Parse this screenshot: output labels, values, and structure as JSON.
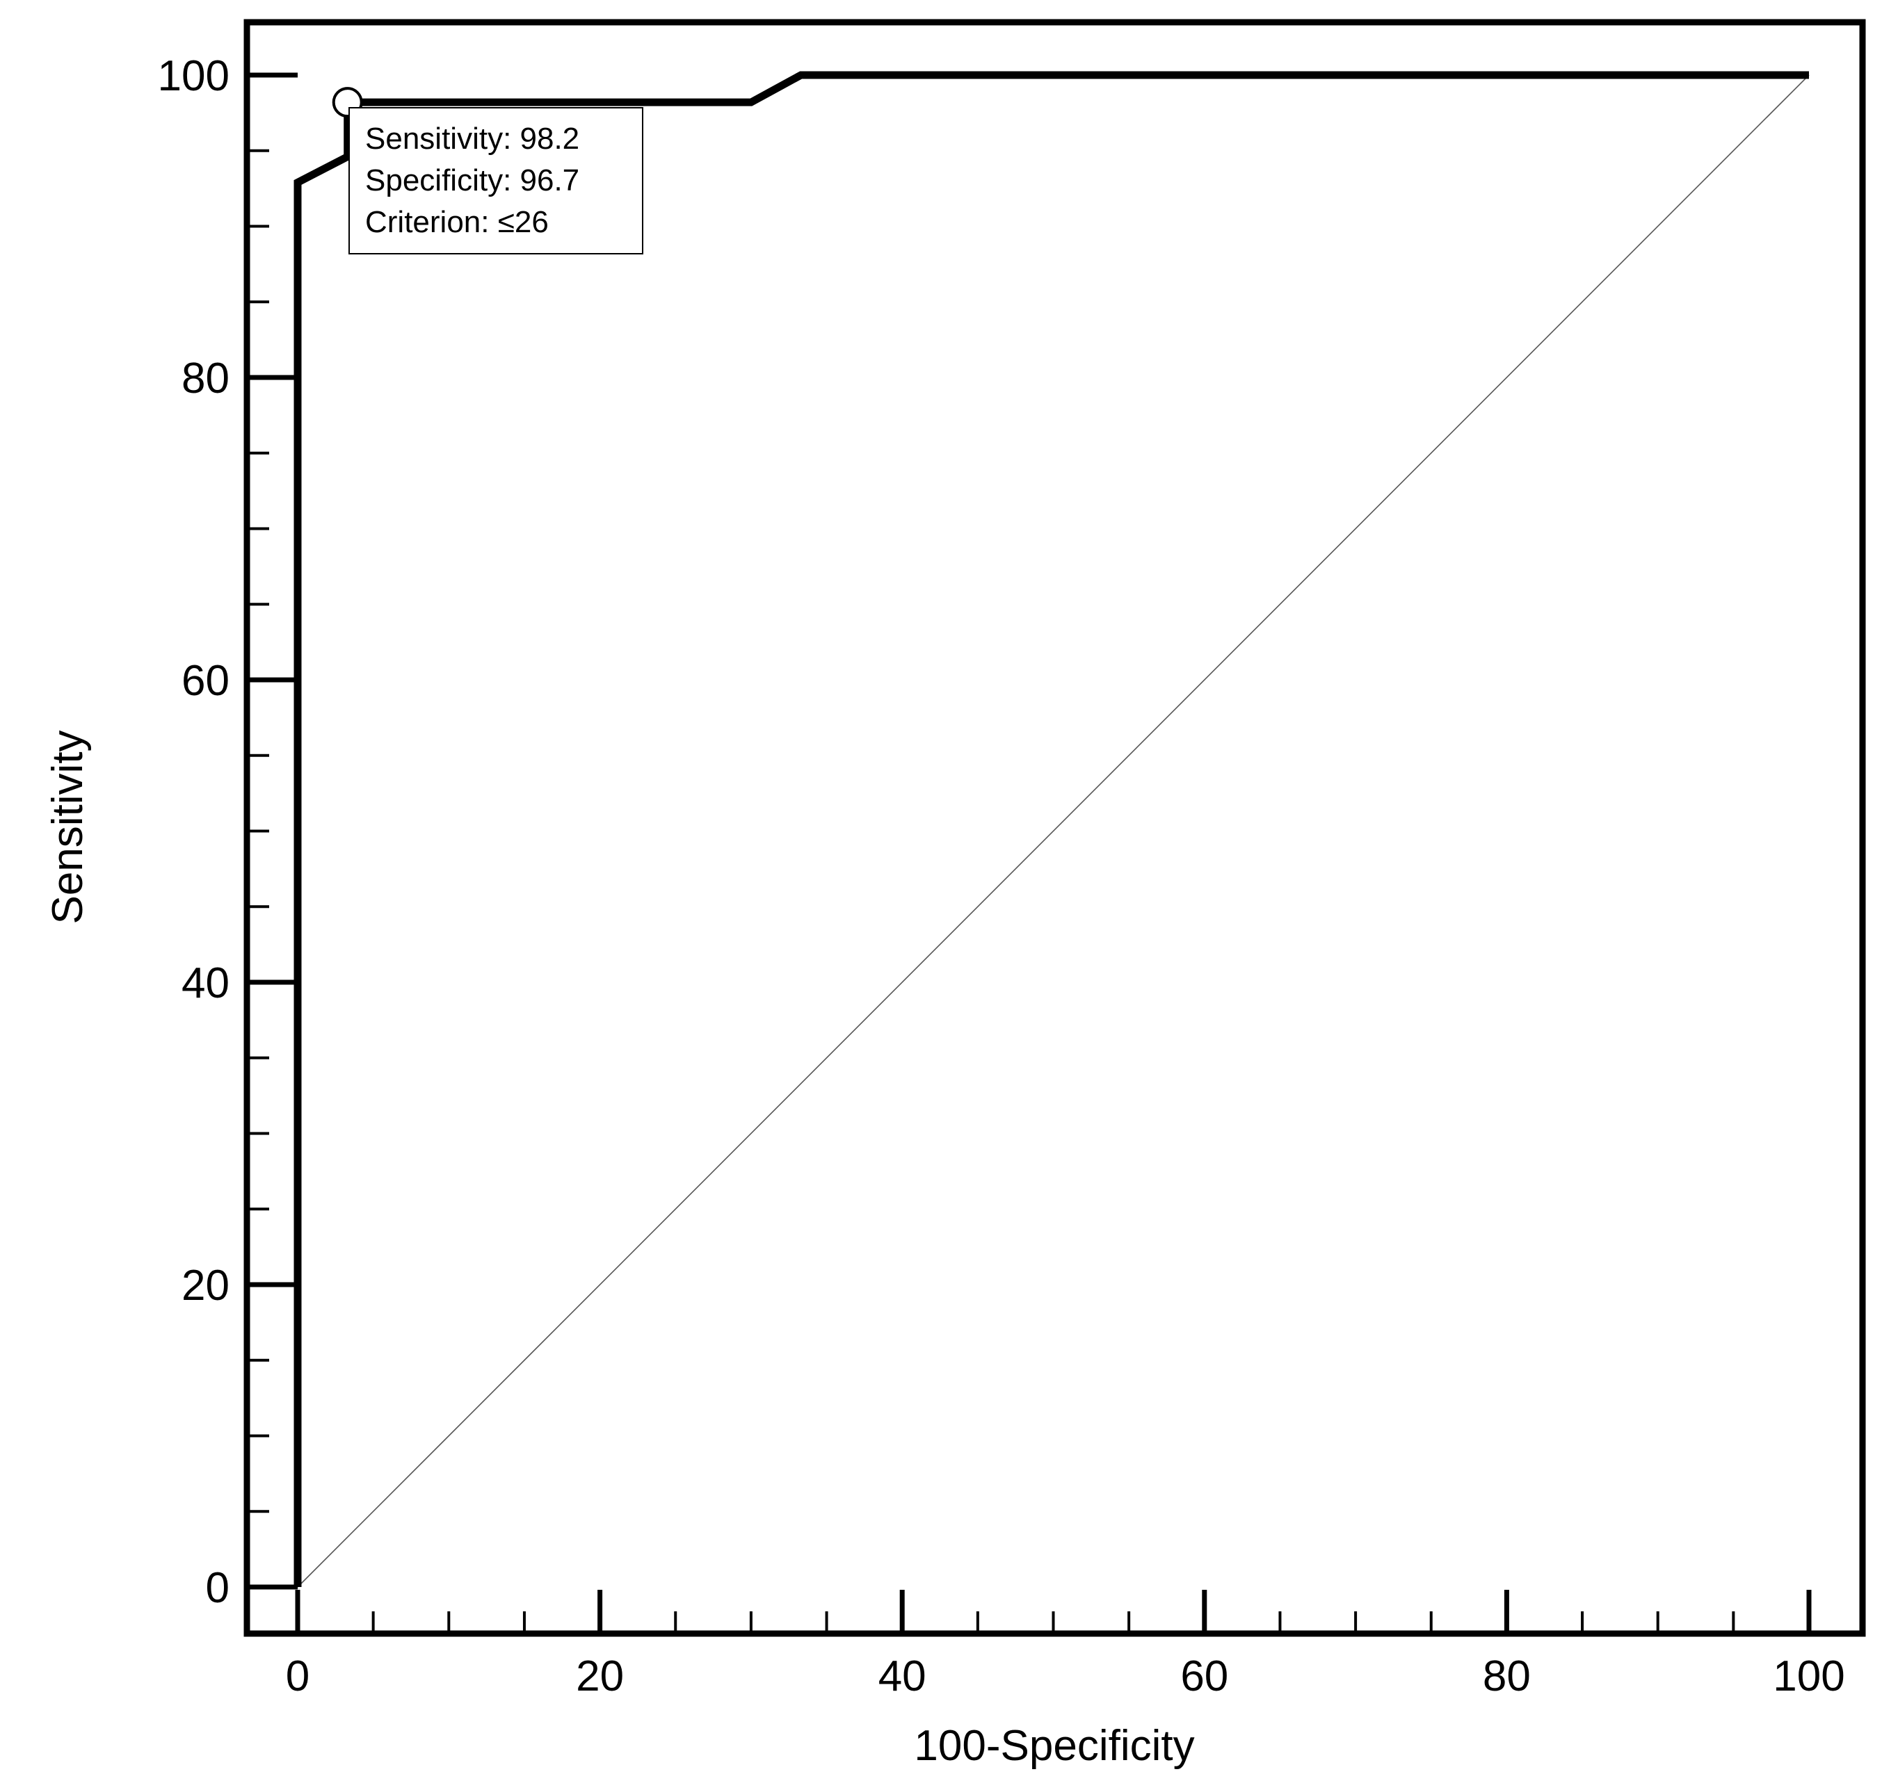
{
  "chart_data": {
    "type": "line",
    "title": "",
    "xlabel": "100-Specificity",
    "ylabel": "Sensitivity",
    "xlim": [
      0,
      100
    ],
    "ylim": [
      0,
      100
    ],
    "x_ticks": [
      "0",
      "20",
      "40",
      "60",
      "80",
      "100"
    ],
    "y_ticks": [
      "0",
      "20",
      "40",
      "60",
      "80",
      "100"
    ],
    "grid": false,
    "legend": "none",
    "series": [
      {
        "style": "thick solid",
        "color": "#000000",
        "points": [
          [
            0,
            0
          ],
          [
            0,
            92.9
          ],
          [
            3.3,
            94.6
          ],
          [
            3.3,
            98.2
          ],
          [
            30,
            98.2
          ],
          [
            33.3,
            100
          ],
          [
            100,
            100
          ]
        ]
      },
      {
        "style": "thin reference diagonal",
        "color": "#555555",
        "points": [
          [
            0,
            0
          ],
          [
            100,
            100
          ]
        ]
      }
    ],
    "marker": {
      "x": 3.3,
      "y": 98.2,
      "shape": "open-circle"
    },
    "annotation": {
      "lines": [
        "Sensitivity: 98.2",
        "Specificity: 96.7",
        "Criterion: ≤26"
      ]
    }
  }
}
